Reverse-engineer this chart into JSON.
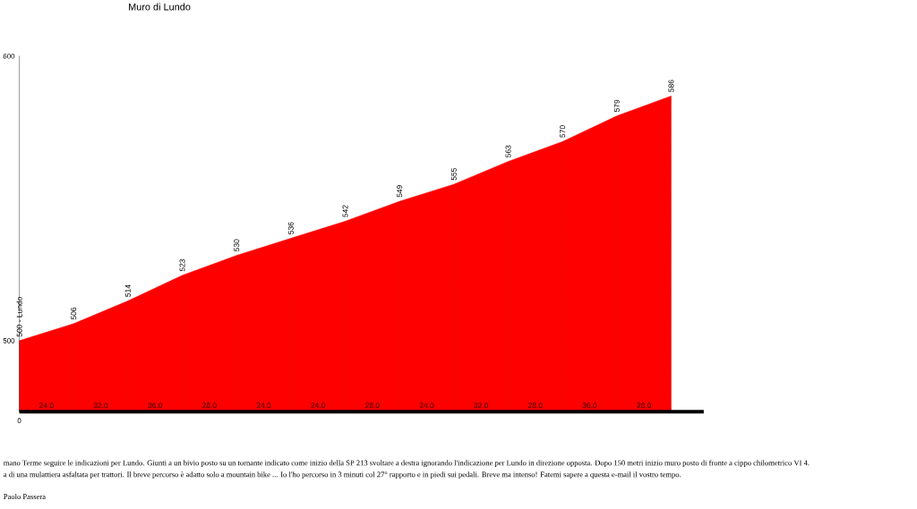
{
  "chart_data": {
    "type": "area",
    "title": "Muro di Lundo",
    "categories": [
      "0",
      null,
      null,
      null,
      null,
      null,
      null,
      null,
      null,
      null,
      null,
      null,
      null
    ],
    "values": [
      500,
      506,
      514,
      523,
      530,
      536,
      542,
      549,
      555,
      563,
      570,
      579,
      586
    ],
    "value_labels": [
      "500 - Lundo",
      "506",
      "514",
      "523",
      "530",
      "536",
      "542",
      "549",
      "555",
      "563",
      "570",
      "579",
      "586"
    ],
    "color": "#ff0000",
    "grid": "x",
    "ylim": [
      475,
      600
    ],
    "yticks": [
      500,
      600
    ],
    "annotations": [
      "24.0",
      "32.0",
      "36.0",
      "28.0",
      "24.0",
      "24.0",
      "28.0",
      "24.0",
      "32.0",
      "28.0",
      "36.0",
      "28.0",
      "mano Terme seguire le indicazioni per Lundo. Giunti a un bivio posto su un tornante indicato come inizio della SP 213 svoltare a destra ignorando l'indicazione per Lundo in direzione opposta. Dopo 150 metri inizio muro posto di fronte a cippo chilometrico VI 4.",
      "a di una mulattiera asfaltata per trattori. Il breve percorso è adatto solo a mountain bike ... Io l'ho percorso in 3 minuti col 27° rapporto e in piedi sui pedali. Breve ma intenso! Fatemi sapere a questa e-mail il vostro tempo.",
      "Paolo Passera"
    ]
  }
}
